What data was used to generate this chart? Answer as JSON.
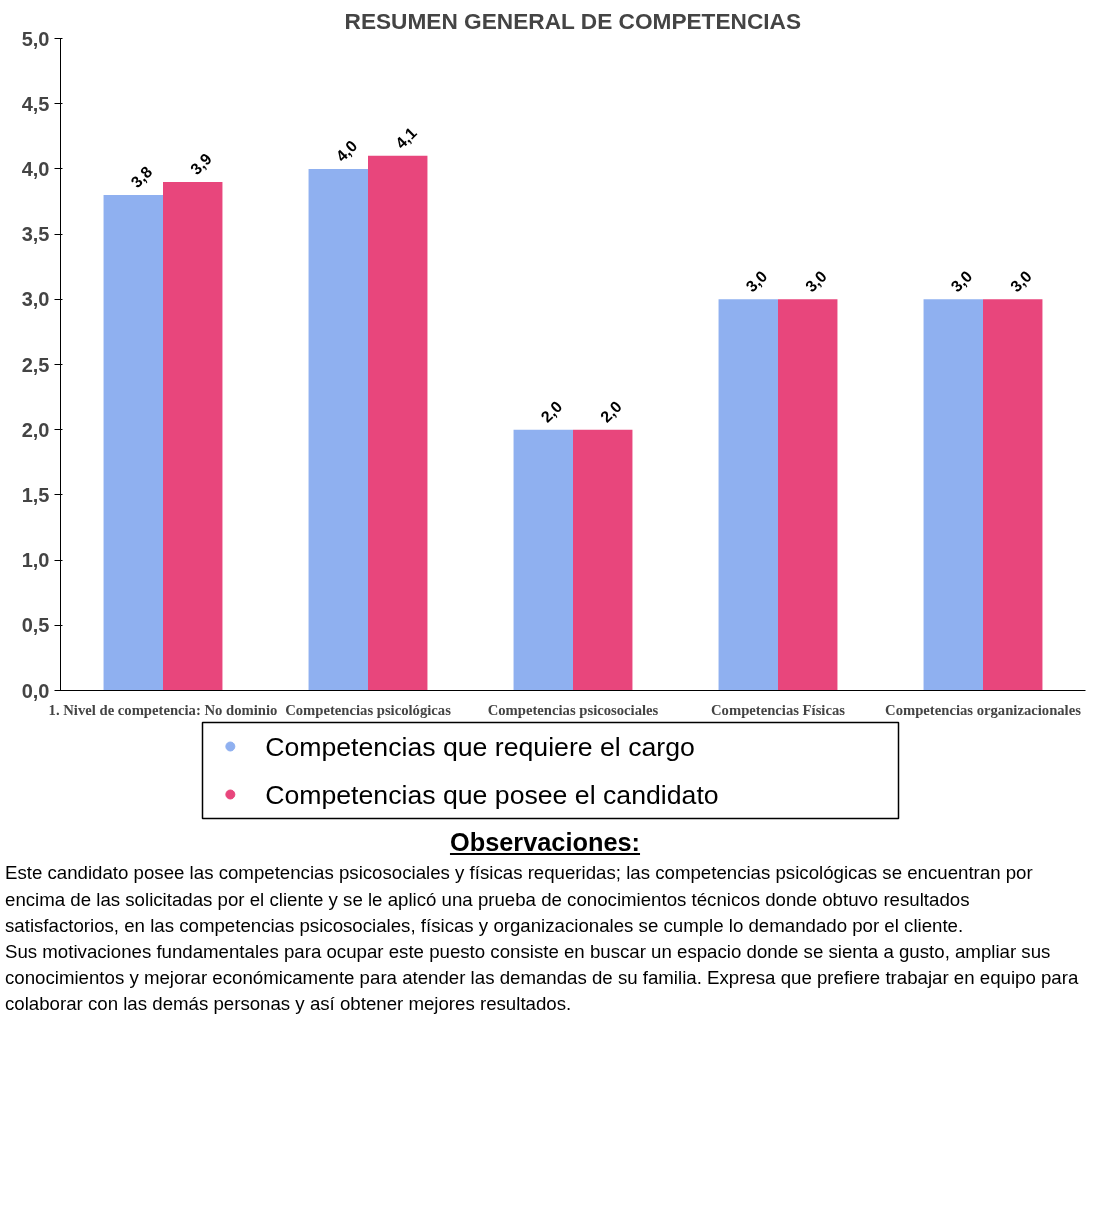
{
  "chart_data": {
    "type": "bar",
    "title": "RESUMEN GENERAL DE COMPETENCIAS",
    "categories": [
      "1. Nivel de competencia: No dominio",
      "Competencias psicológicas",
      "Competencias psicosociales",
      "Competencias Físicas",
      "Competencias organizacionales"
    ],
    "series": [
      {
        "name": "Competencias que requiere el cargo",
        "color": "#8fb0f0",
        "values": [
          3.8,
          4.0,
          2.0,
          3.0,
          3.0
        ],
        "value_labels": [
          "3,8",
          "4,0",
          "2,0",
          "3,0",
          "3,0"
        ]
      },
      {
        "name": "Competencias que posee el candidato",
        "color": "#e8467c",
        "values": [
          3.9,
          4.1,
          2.0,
          3.0,
          3.0
        ],
        "value_labels": [
          "3,9",
          "4,1",
          "2,0",
          "3,0",
          "3,0"
        ]
      }
    ],
    "ylim": [
      0,
      5
    ],
    "yticks": [
      {
        "value": 0,
        "label": "0,0"
      },
      {
        "value": 0.5,
        "label": "0,5"
      },
      {
        "value": 1,
        "label": "1,0"
      },
      {
        "value": 1.5,
        "label": "1,5"
      },
      {
        "value": 2,
        "label": "2,0"
      },
      {
        "value": 2.5,
        "label": "2,5"
      },
      {
        "value": 3,
        "label": "3,0"
      },
      {
        "value": 3.5,
        "label": "3,5"
      },
      {
        "value": 4,
        "label": "4,0"
      },
      {
        "value": 4.5,
        "label": "4,5"
      },
      {
        "value": 5,
        "label": "5,0"
      }
    ],
    "legend": "bottom",
    "annotations": [
      "Observaciones:",
      "Este candidato posee  las competencias  psicosociales y físicas requeridas; las competencias psicológicas se encuentran por encima de las solicitadas por el cliente y se le aplicó una prueba de conocimientos técnicos donde obtuvo resultados satisfactorios, en  las competencias psicosociales, físicas y organizacionales se cumple lo demandado  por el cliente.",
      "Sus motivaciones fundamentales para ocupar este puesto consiste en buscar un espacio donde se sienta a gusto, ampliar sus conocimientos y mejorar económicamente para atender las demandas de su familia. Expresa  que  prefiere trabajar en equipo para colaborar con las demás personas y así obtener mejores resultados."
    ]
  }
}
